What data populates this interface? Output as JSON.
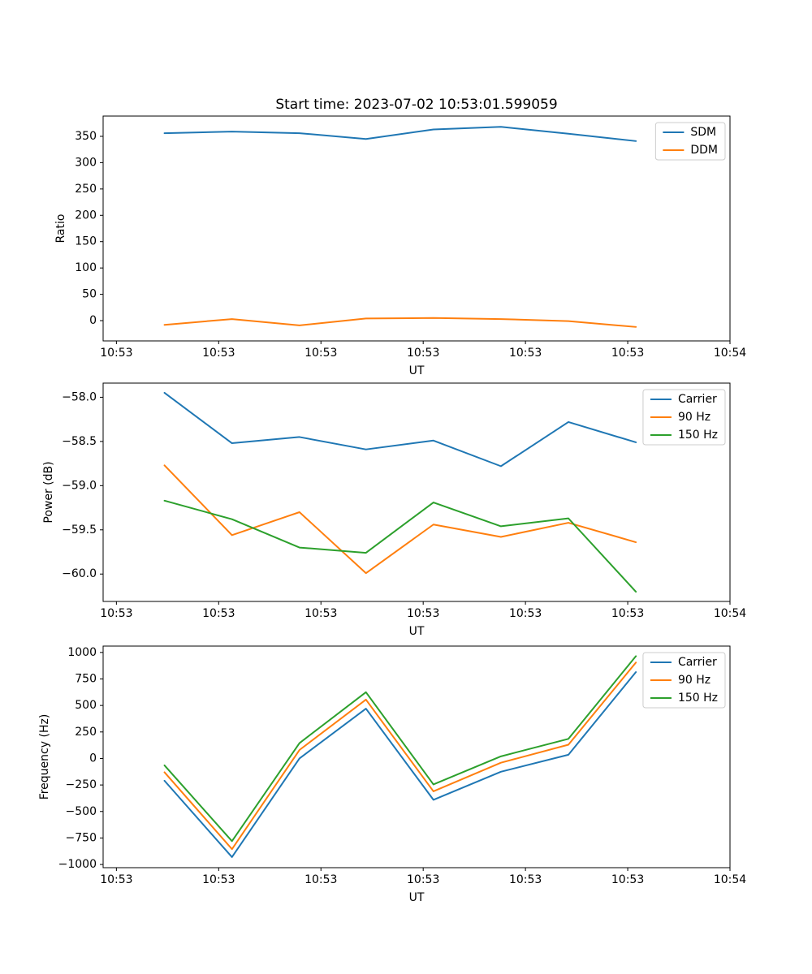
{
  "figure": {
    "title": "Start time: 2023-07-02 10:53:01.599059",
    "background": "#ffffff"
  },
  "palette": {
    "C0": "#1f77b4",
    "C1": "#ff7f0e",
    "C2": "#2ca02c"
  },
  "x_axis": {
    "label": "UT",
    "tick_labels": [
      "10:53",
      "10:53",
      "10:53",
      "10:53",
      "10:53",
      "10:53",
      "10:54"
    ],
    "tick_positions_sec": [
      0,
      10,
      20,
      30,
      40,
      50,
      60
    ],
    "xlim_sec": [
      -1.3,
      60.0
    ]
  },
  "x_seconds": [
    4.7,
    11.3,
    17.9,
    24.4,
    31.0,
    37.6,
    44.2,
    50.8
  ],
  "chart_data": [
    {
      "name": "ratio",
      "type": "line",
      "title": "Start time: 2023-07-02 10:53:01.599059",
      "xlabel": "UT",
      "ylabel": "Ratio",
      "ylim": [
        -38.5,
        388.5
      ],
      "yticks": [
        0,
        50,
        100,
        150,
        200,
        250,
        300,
        350
      ],
      "ytick_labels": [
        "0",
        "50",
        "100",
        "150",
        "200",
        "250",
        "300",
        "350"
      ],
      "grid": false,
      "legend_position": "upper right",
      "legend": [
        "SDM",
        "DDM"
      ],
      "series": [
        {
          "name": "SDM",
          "color": "C0",
          "values": [
            356,
            359,
            356,
            345,
            363,
            368,
            355,
            341
          ]
        },
        {
          "name": "DDM",
          "color": "C1",
          "values": [
            -8,
            3,
            -9,
            4,
            5,
            3,
            -1,
            -12
          ]
        }
      ]
    },
    {
      "name": "power",
      "type": "line",
      "xlabel": "UT",
      "ylabel": "Power (dB)",
      "ylim": [
        -60.31,
        -57.84
      ],
      "yticks": [
        -58.0,
        -58.5,
        -59.0,
        -59.5,
        -60.0
      ],
      "ytick_labels": [
        "−58.0",
        "−58.5",
        "−59.0",
        "−59.5",
        "−60.0"
      ],
      "grid": false,
      "legend_position": "upper right",
      "legend": [
        "Carrier",
        "90 Hz",
        "150 Hz"
      ],
      "series": [
        {
          "name": "Carrier",
          "color": "C0",
          "values": [
            -57.95,
            -58.52,
            -58.45,
            -58.59,
            -58.49,
            -58.78,
            -58.28,
            -58.51
          ]
        },
        {
          "name": "90 Hz",
          "color": "C1",
          "values": [
            -58.77,
            -59.56,
            -59.3,
            -59.99,
            -59.44,
            -59.58,
            -59.42,
            -59.64
          ]
        },
        {
          "name": "150 Hz",
          "color": "C2",
          "values": [
            -59.17,
            -59.38,
            -59.7,
            -59.76,
            -59.19,
            -59.46,
            -59.37,
            -60.2
          ]
        }
      ]
    },
    {
      "name": "frequency",
      "type": "line",
      "xlabel": "UT",
      "ylabel": "Frequency (Hz)",
      "ylim": [
        -1030,
        1060
      ],
      "yticks": [
        1000,
        750,
        500,
        250,
        0,
        -250,
        -500,
        -750,
        -1000
      ],
      "ytick_labels": [
        "1000",
        "750",
        "500",
        "250",
        "0",
        "−250",
        "−500",
        "−750",
        "−1000"
      ],
      "grid": false,
      "legend_position": "upper right",
      "legend": [
        "Carrier",
        "90 Hz",
        "150 Hz"
      ],
      "series": [
        {
          "name": "Carrier",
          "color": "C0",
          "values": [
            -210,
            -930,
            0,
            470,
            -390,
            -125,
            35,
            815
          ]
        },
        {
          "name": "90 Hz",
          "color": "C1",
          "values": [
            -130,
            -855,
            80,
            555,
            -310,
            -40,
            130,
            905
          ]
        },
        {
          "name": "150 Hz",
          "color": "C2",
          "values": [
            -65,
            -780,
            145,
            625,
            -245,
            20,
            185,
            965
          ]
        }
      ]
    }
  ]
}
